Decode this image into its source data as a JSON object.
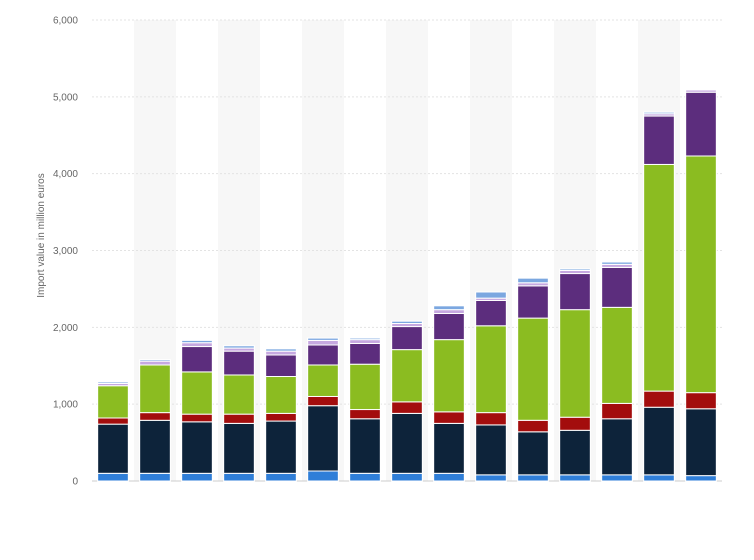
{
  "chart_data": {
    "type": "bar",
    "stacked": true,
    "title": "",
    "xlabel": "",
    "ylabel": "Import value in million euros",
    "ylim": [
      0,
      6000
    ],
    "y_ticks": [
      0,
      1000,
      2000,
      3000,
      4000,
      5000,
      6000
    ],
    "y_tick_labels": [
      "0",
      "1,000",
      "2,000",
      "3,000",
      "4,000",
      "5,000",
      "6,000"
    ],
    "grid": true,
    "legend": "none",
    "categories": [
      "",
      "",
      "",
      "",
      "",
      "",
      "",
      "",
      "",
      "",
      "",
      "",
      "",
      "",
      ""
    ],
    "series": [
      {
        "color": "#2f7ed8",
        "values": [
          100,
          100,
          100,
          100,
          100,
          130,
          100,
          100,
          100,
          80,
          80,
          80,
          80,
          80,
          70
        ]
      },
      {
        "color": "#0d233a",
        "values": [
          640,
          690,
          670,
          650,
          680,
          850,
          710,
          780,
          650,
          650,
          560,
          580,
          730,
          880,
          870
        ]
      },
      {
        "color": "#a30d0d",
        "values": [
          80,
          100,
          100,
          120,
          100,
          120,
          120,
          150,
          150,
          160,
          150,
          170,
          200,
          210,
          210
        ]
      },
      {
        "color": "#8bbc21",
        "values": [
          420,
          620,
          550,
          510,
          480,
          410,
          590,
          680,
          940,
          1130,
          1330,
          1400,
          1250,
          2950,
          3080
        ]
      },
      {
        "color": "#5c2d7d",
        "values": [
          0,
          0,
          330,
          310,
          280,
          260,
          270,
          300,
          340,
          330,
          420,
          470,
          520,
          630,
          830
        ]
      },
      {
        "color": "#c6a8e0",
        "values": [
          30,
          50,
          50,
          40,
          50,
          60,
          50,
          40,
          50,
          30,
          40,
          40,
          40,
          30,
          30
        ]
      },
      {
        "color": "#7ba7e0",
        "values": [
          20,
          20,
          30,
          30,
          30,
          30,
          20,
          30,
          50,
          80,
          60,
          20,
          30,
          20,
          10
        ]
      }
    ]
  }
}
